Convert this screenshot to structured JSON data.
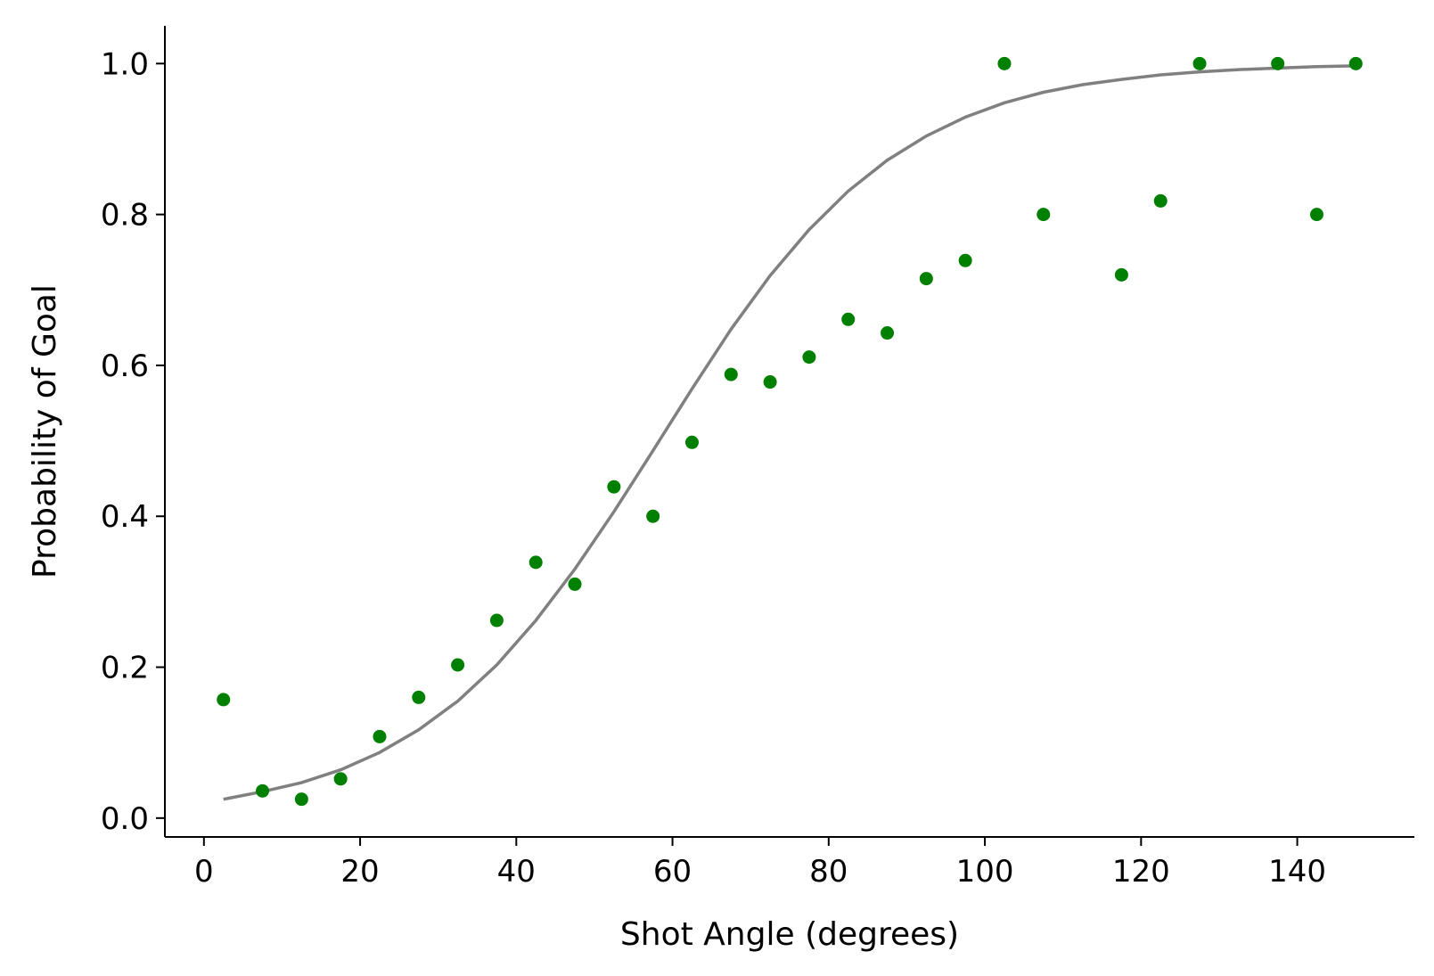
{
  "chart_data": {
    "type": "scatter",
    "title": "",
    "xlabel": "Shot Angle (degrees)",
    "ylabel": "Probability of Goal",
    "xlim": [
      -5,
      155
    ],
    "ylim": [
      -0.025,
      1.05
    ],
    "x_ticks": [
      0,
      20,
      40,
      60,
      80,
      100,
      120,
      140
    ],
    "y_ticks": [
      0.0,
      0.2,
      0.4,
      0.6,
      0.8,
      1.0
    ],
    "x_tick_labels": [
      "0",
      "20",
      "40",
      "60",
      "80",
      "100",
      "120",
      "140"
    ],
    "y_tick_labels": [
      "0.0",
      "0.2",
      "0.4",
      "0.6",
      "0.8",
      "1.0"
    ],
    "grid": false,
    "spines": [
      "left",
      "bottom"
    ],
    "series": [
      {
        "kind": "scatter",
        "color": "#008000",
        "x": [
          2.5,
          7.5,
          12.5,
          17.5,
          22.5,
          27.5,
          32.5,
          37.5,
          42.5,
          47.5,
          52.5,
          57.5,
          62.5,
          67.5,
          72.5,
          77.5,
          82.5,
          87.5,
          92.5,
          97.5,
          102.5,
          107.5,
          117.5,
          122.5,
          127.5,
          137.5,
          142.5,
          147.5
        ],
        "y": [
          0.157,
          0.036,
          0.025,
          0.052,
          0.108,
          0.16,
          0.203,
          0.262,
          0.339,
          0.31,
          0.439,
          0.4,
          0.498,
          0.588,
          0.578,
          0.611,
          0.661,
          0.643,
          0.715,
          0.739,
          1.0,
          0.8,
          0.72,
          0.818,
          1.0,
          1.0,
          0.8,
          1.0
        ]
      },
      {
        "kind": "line",
        "color": "#808080",
        "x": [
          2.5,
          7.5,
          12.5,
          17.5,
          22.5,
          27.5,
          32.5,
          37.5,
          42.5,
          47.5,
          52.5,
          57.5,
          62.5,
          67.5,
          72.5,
          77.5,
          82.5,
          87.5,
          92.5,
          97.5,
          102.5,
          107.5,
          112.5,
          117.5,
          122.5,
          127.5,
          132.5,
          137.5,
          142.5,
          147.5
        ],
        "y": [
          0.025,
          0.035,
          0.047,
          0.064,
          0.087,
          0.117,
          0.155,
          0.203,
          0.262,
          0.33,
          0.406,
          0.487,
          0.569,
          0.648,
          0.719,
          0.78,
          0.831,
          0.872,
          0.904,
          0.929,
          0.948,
          0.962,
          0.972,
          0.979,
          0.985,
          0.989,
          0.992,
          0.994,
          0.996,
          0.997
        ]
      }
    ]
  }
}
